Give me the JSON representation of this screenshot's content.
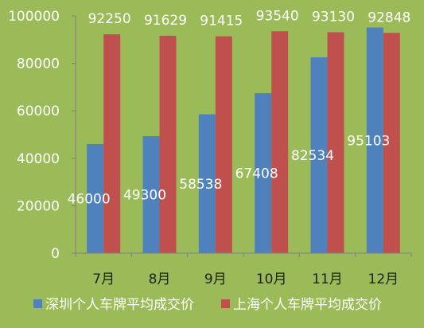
{
  "chart_data": {
    "type": "bar",
    "categories": [
      "7月",
      "8月",
      "9月",
      "10月",
      "11月",
      "12月"
    ],
    "series": [
      {
        "name": "深圳个人车牌平均成交价",
        "color": "#4F81BD",
        "values": [
          46000,
          49300,
          58538,
          67408,
          82534,
          95103
        ]
      },
      {
        "name": "上海个人车牌平均成交价",
        "color": "#C0504D",
        "values": [
          92250,
          91629,
          91415,
          93540,
          93130,
          92848
        ]
      }
    ],
    "ylim": [
      0,
      100000
    ],
    "yticks": [
      0,
      20000,
      40000,
      60000,
      80000,
      100000
    ],
    "title": "",
    "xlabel": "",
    "ylabel": "",
    "grid": false,
    "legend_position": "bottom",
    "background_color": "#9BBB59"
  }
}
